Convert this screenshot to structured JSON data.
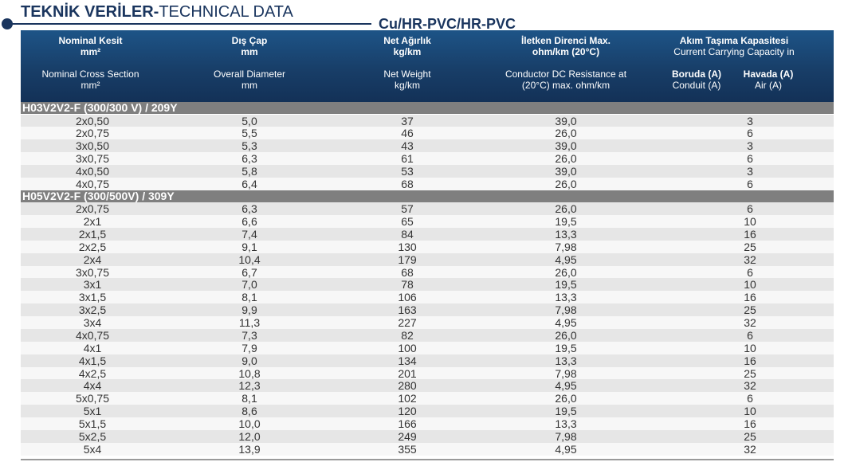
{
  "title_bold": "TEKNİK VERİLER-",
  "title_light": "TECHNICAL DATA",
  "subtitle": "Cu/HR-PVC/HR-PVC",
  "header": {
    "col1_tr": "Nominal Kesit",
    "col1_tr_unit": "mm²",
    "col1_en": "Nominal Cross Section",
    "col1_en_unit": "mm²",
    "col2_tr": "Dış Çap",
    "col2_tr_unit": "mm",
    "col2_en": "Overall Diameter",
    "col2_en_unit": "mm",
    "col3_tr": "Net Ağırlık",
    "col3_tr_unit": "kg/km",
    "col3_en": "Net Weight",
    "col3_en_unit": "kg/km",
    "col4_tr": "İletken Direnci Max.",
    "col4_tr_unit": "ohm/km (20°C)",
    "col4_en": "Conductor DC Resistance at",
    "col4_en_unit": "(20°C) max. ohm/km",
    "col5_tr": "Akım Taşıma Kapasitesi",
    "col5_en": "Current Carrying Capacity in",
    "col5a_tr": "Boruda (A)",
    "col5a_en": "Conduit (A)",
    "col5b_tr": "Havada (A)",
    "col5b_en": "Air (A)"
  },
  "sections": [
    {
      "label": "H03V2V2-F (300/300 V) / 209Y",
      "rows": [
        {
          "section": "2x0,50",
          "diameter": "5,0",
          "weight": "37",
          "resistance": "39,0",
          "air": "3"
        },
        {
          "section": "2x0,75",
          "diameter": "5,5",
          "weight": "46",
          "resistance": "26,0",
          "air": "6"
        },
        {
          "section": "3x0,50",
          "diameter": "5,3",
          "weight": "43",
          "resistance": "39,0",
          "air": "3"
        },
        {
          "section": "3x0,75",
          "diameter": "6,3",
          "weight": "61",
          "resistance": "26,0",
          "air": "6"
        },
        {
          "section": "4x0,50",
          "diameter": "5,8",
          "weight": "53",
          "resistance": "39,0",
          "air": "3"
        },
        {
          "section": "4x0,75",
          "diameter": "6,4",
          "weight": "68",
          "resistance": "26,0",
          "air": "6"
        }
      ]
    },
    {
      "label": "H05V2V2-F (300/500V) / 309Y",
      "rows": [
        {
          "section": "2x0,75",
          "diameter": "6,3",
          "weight": "57",
          "resistance": "26,0",
          "air": "6"
        },
        {
          "section": "2x1",
          "diameter": "6,6",
          "weight": "65",
          "resistance": "19,5",
          "air": "10"
        },
        {
          "section": "2x1,5",
          "diameter": "7,4",
          "weight": "84",
          "resistance": "13,3",
          "air": "16"
        },
        {
          "section": "2x2,5",
          "diameter": "9,1",
          "weight": "130",
          "resistance": "7,98",
          "air": "25"
        },
        {
          "section": "2x4",
          "diameter": "10,4",
          "weight": "179",
          "resistance": "4,95",
          "air": "32"
        },
        {
          "section": "3x0,75",
          "diameter": "6,7",
          "weight": "68",
          "resistance": "26,0",
          "air": "6"
        },
        {
          "section": "3x1",
          "diameter": "7,0",
          "weight": "78",
          "resistance": "19,5",
          "air": "10"
        },
        {
          "section": "3x1,5",
          "diameter": "8,1",
          "weight": "106",
          "resistance": "13,3",
          "air": "16"
        },
        {
          "section": "3x2,5",
          "diameter": "9,9",
          "weight": "163",
          "resistance": "7,98",
          "air": "25"
        },
        {
          "section": "3x4",
          "diameter": "11,3",
          "weight": "227",
          "resistance": "4,95",
          "air": "32"
        },
        {
          "section": "4x0,75",
          "diameter": "7,3",
          "weight": "82",
          "resistance": "26,0",
          "air": "6"
        },
        {
          "section": "4x1",
          "diameter": "7,9",
          "weight": "100",
          "resistance": "19,5",
          "air": "10"
        },
        {
          "section": "4x1,5",
          "diameter": "9,0",
          "weight": "134",
          "resistance": "13,3",
          "air": "16"
        },
        {
          "section": "4x2,5",
          "diameter": "10,8",
          "weight": "201",
          "resistance": "7,98",
          "air": "25"
        },
        {
          "section": "4x4",
          "diameter": "12,3",
          "weight": "280",
          "resistance": "4,95",
          "air": "32"
        },
        {
          "section": "5x0,75",
          "diameter": "8,1",
          "weight": "102",
          "resistance": "26,0",
          "air": "6"
        },
        {
          "section": "5x1",
          "diameter": "8,6",
          "weight": "120",
          "resistance": "19,5",
          "air": "10"
        },
        {
          "section": "5x1,5",
          "diameter": "10,0",
          "weight": "166",
          "resistance": "13,3",
          "air": "16"
        },
        {
          "section": "5x2,5",
          "diameter": "12,0",
          "weight": "249",
          "resistance": "7,98",
          "air": "25"
        },
        {
          "section": "5x4",
          "diameter": "13,9",
          "weight": "355",
          "resistance": "4,95",
          "air": "32"
        }
      ]
    }
  ]
}
